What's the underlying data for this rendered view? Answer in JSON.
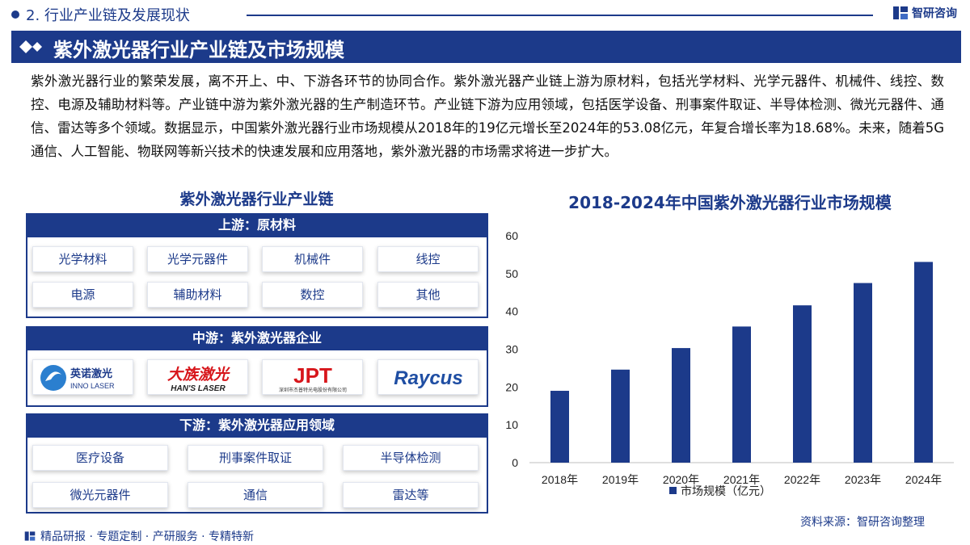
{
  "header": {
    "section": "2. 行业产业链及发展现状",
    "brand": "智研咨询",
    "title": "紫外激光器行业产业链及市场规模"
  },
  "intro": "紫外激光器行业的繁荣发展，离不开上、中、下游各环节的协同合作。紫外激光器产业链上游为原材料，包括光学材料、光学元器件、机械件、线控、数控、电源及辅助材料等。产业链中游为紫外激光器的生产制造环节。产业链下游为应用领域，包括医学设备、刑事案件取证、半导体检测、微光元器件、通信、雷达等多个领域。数据显示，中国紫外激光器行业市场规模从2018年的19亿元增长至2024年的53.08亿元，年复合增长率为18.68%。未来，随着5G通信、人工智能、物联网等新兴技术的快速发展和应用落地，紫外激光器的市场需求将进一步扩大。",
  "chain": {
    "title": "紫外激光器行业产业链",
    "upstream": {
      "head": "上游：原材料",
      "items": [
        "光学材料",
        "光学元器件",
        "机械件",
        "线控",
        "电源",
        "辅助材料",
        "数控",
        "其他"
      ]
    },
    "midstream": {
      "head": "中游：紫外激光器企业",
      "logos": [
        {
          "cn": "英诺激光",
          "en": "INNO LASER"
        },
        {
          "cn": "大族激光",
          "en": "HAN'S LASER"
        },
        {
          "cn": "JPT",
          "en": "深圳市杰普特光电股份有限公司"
        },
        {
          "cn": "Raycus",
          "en": ""
        }
      ]
    },
    "downstream": {
      "head": "下游：紫外激光器应用领域",
      "items": [
        "医疗设备",
        "刑事案件取证",
        "半导体检测",
        "微光元器件",
        "通信",
        "雷达等"
      ]
    }
  },
  "chart_data": {
    "type": "bar",
    "title": "2018-2024年中国紫外激光器行业市场规模",
    "categories": [
      "2018年",
      "2019年",
      "2020年",
      "2021年",
      "2022年",
      "2023年",
      "2024年"
    ],
    "series": [
      {
        "name": "市场规模（亿元）",
        "values": [
          19,
          24.6,
          30.3,
          36,
          41.6,
          47.5,
          53.08
        ]
      }
    ],
    "ylim": [
      0,
      60
    ],
    "yticks": [
      "0",
      "10",
      "20",
      "30",
      "40",
      "50",
      "60"
    ],
    "grid": false,
    "legend": "bottom-center",
    "bar_color": "#1c3a8a"
  },
  "source": "资料来源：智研咨询整理",
  "footer": "精品研报 · 专题定制 · 产研服务 · 专精特新",
  "colors": {
    "primary": "#1c3a8a",
    "logo_red": "#d7161b",
    "logo_blue": "#1f4ea3"
  }
}
